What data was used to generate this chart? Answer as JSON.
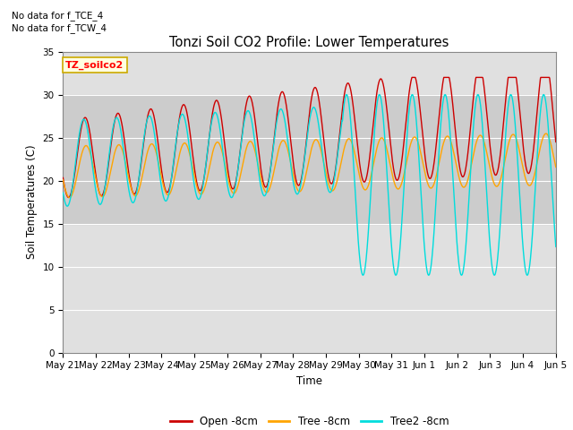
{
  "title": "Tonzi Soil CO2 Profile: Lower Temperatures",
  "ylabel": "Soil Temperatures (C)",
  "xlabel": "Time",
  "annotations": [
    "No data for f_TCE_4",
    "No data for f_TCW_4"
  ],
  "dataset_label": "TZ_soilco2",
  "ylim": [
    0,
    35
  ],
  "yticks": [
    0,
    5,
    10,
    15,
    20,
    25,
    30,
    35
  ],
  "background_color": "#ffffff",
  "plot_bg_color": "#e0e0e0",
  "band_color": "#cccccc",
  "band_lower": 15,
  "band_upper": 30,
  "line_colors": {
    "open": "#cc0000",
    "tree": "#ffa500",
    "tree2": "#00dddd"
  },
  "legend_labels": [
    "Open -8cm",
    "Tree -8cm",
    "Tree2 -8cm"
  ],
  "x_tick_labels": [
    "May 21",
    "May 22",
    "May 23",
    "May 24",
    "May 25",
    "May 26",
    "May 27",
    "May 28",
    "May 29",
    "May 30",
    "May 31",
    "Jun 1",
    "Jun 2",
    "Jun 3",
    "Jun 4",
    "Jun 5"
  ],
  "num_days": 15
}
